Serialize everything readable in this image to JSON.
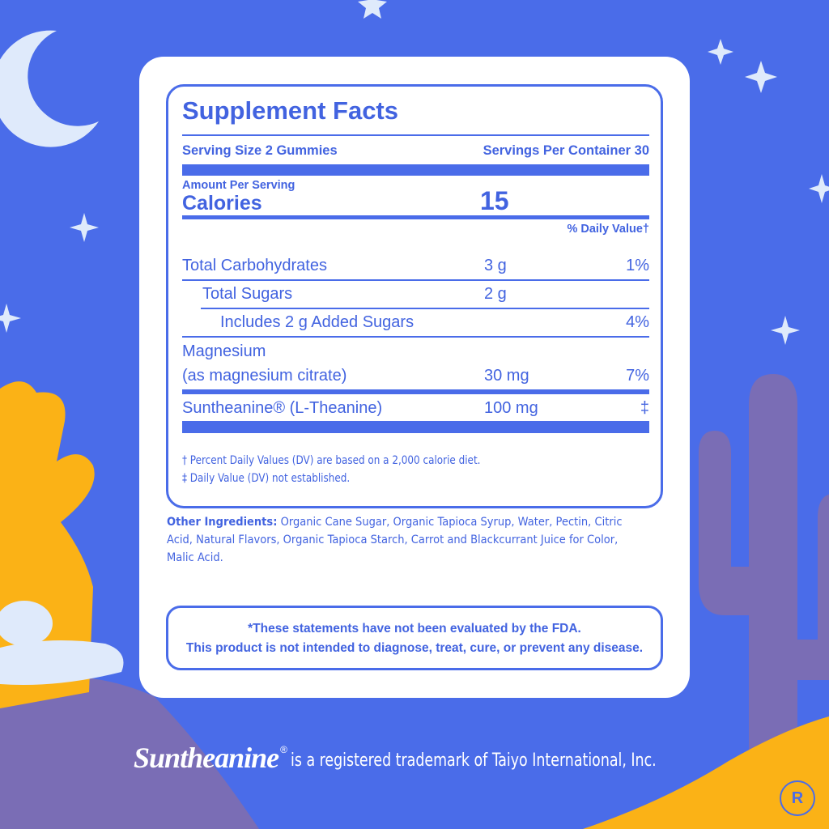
{
  "colors": {
    "background": "#4a6ce9",
    "label_text": "#4263e0",
    "card": "#ffffff",
    "cactus": "#7a6db5",
    "accent_yellow": "#fbb216"
  },
  "facts": {
    "title": "Supplement Facts",
    "serving_size": "Serving Size 2 Gummies",
    "servings_per_container": "Servings Per Container 30",
    "amount_per_serving": "Amount Per Serving",
    "calories_label": "Calories",
    "calories_value": "15",
    "dv_header": "% Daily Value†",
    "rows": [
      {
        "name": "Total Carbohydrates",
        "amount": "3 g",
        "dv": "1%"
      },
      {
        "name": "Total Sugars",
        "amount": "2 g",
        "dv": ""
      },
      {
        "name": "Includes 2 g Added Sugars",
        "amount": "",
        "dv": "4%"
      },
      {
        "name": "Magnesium",
        "name2": "(as magnesium citrate)",
        "amount": "30 mg",
        "dv": "7%"
      },
      {
        "name": "Suntheanine® (L-Theanine)",
        "amount": "100 mg",
        "dv": "‡"
      }
    ],
    "footnote1": "† Percent Daily Values (DV) are based on a 2,000 calorie diet.",
    "footnote2": "‡ Daily Value (DV) not established."
  },
  "ingredients": {
    "label": "Other Ingredients:",
    "text": " Organic Cane Sugar, Organic Tapioca Syrup, Water, Pectin, Citric Acid, Natural Flavors, Organic Tapioca Starch, Carrot and Blackcurrant Juice for Color, Malic Acid."
  },
  "disclaimer": {
    "line1": "*These statements have not been evaluated by the FDA.",
    "line2": "This product is not intended to diagnose, treat, cure, or prevent any disease."
  },
  "trademark": {
    "logo": "Suntheanine",
    "reg": "®",
    "text": "is a registered trademark of Taiyo International, Inc."
  },
  "badge": "R"
}
